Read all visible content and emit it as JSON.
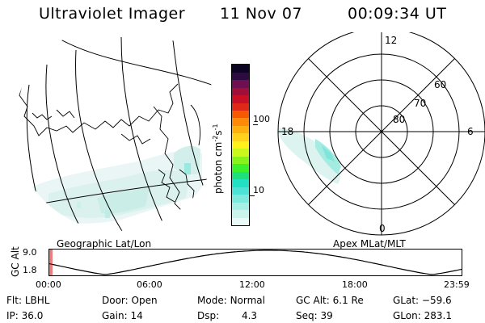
{
  "header": {
    "instrument": "Ultraviolet Imager",
    "date": "11 Nov 07",
    "time": "00:09:34 UT"
  },
  "colorbar": {
    "unit_label": "photon cm",
    "unit_exp1": "-2",
    "unit_s": "s",
    "unit_exp2": "-1",
    "ticks": [
      "100",
      "10"
    ],
    "colors": [
      "#e9fbf6",
      "#caf4ec",
      "#a8efe6",
      "#7eeadc",
      "#4ee2d6",
      "#22e0c2",
      "#1ee07a",
      "#3cf02c",
      "#88f21a",
      "#c9f81a",
      "#fff21c",
      "#ffd21c",
      "#ffb011",
      "#ff8a0a",
      "#f65a00",
      "#e02818",
      "#c80f25",
      "#a00f3a",
      "#6e0f52",
      "#2c0c40",
      "#0c0420"
    ]
  },
  "geo_map": {
    "label": "Geographic Lat/Lon"
  },
  "polar_plot": {
    "label": "Apex MLat/MLT",
    "mlt_labels": [
      "12",
      "18",
      "6",
      "0"
    ],
    "mlat_labels": [
      "60",
      "70",
      "80"
    ]
  },
  "altitude_plot": {
    "ylabel": "GC Alt",
    "y_ticks": [
      "9.0",
      "1.8"
    ],
    "x_ticks": [
      "00:00",
      "06:00",
      "12:00",
      "18:00",
      "23:59"
    ],
    "marker_color": "#d00000"
  },
  "footer": {
    "row1": [
      {
        "key": "Flt:",
        "value": "LBHL"
      },
      {
        "key": "Door:",
        "value": "Open"
      },
      {
        "key": "Mode:",
        "value": "Normal"
      },
      {
        "key": "GC Alt:",
        "value": "6.1 Re"
      },
      {
        "key": "GLat:",
        "value": "−59.6"
      }
    ],
    "row2": [
      {
        "key": "IP:",
        "value": "36.0"
      },
      {
        "key": "Gain:",
        "value": "14"
      },
      {
        "key": "Dsp:",
        "value": "4.3"
      },
      {
        "key": "Seq:",
        "value": "39"
      },
      {
        "key": "GLon:",
        "value": "283.1"
      }
    ]
  }
}
